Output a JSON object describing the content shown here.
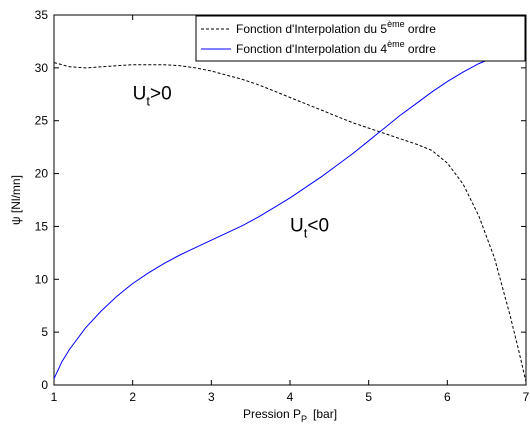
{
  "chart_data": {
    "type": "line",
    "title": "",
    "xlabel": "Pression P",
    "xlabel_sub": "P",
    "xlabel_unit": "[bar]",
    "ylabel": "ψ  [Nl/mn]",
    "xlim": [
      1,
      7
    ],
    "ylim": [
      0,
      35
    ],
    "xticks": [
      "1",
      "2",
      "3",
      "4",
      "5",
      "6",
      "7"
    ],
    "yticks": [
      "0",
      "5",
      "10",
      "15",
      "20",
      "25",
      "30",
      "35"
    ],
    "grid": false,
    "legend_position": "top-right",
    "series": [
      {
        "name_prefix": "Fonction d'Interpolation du 5",
        "name_sup": "ème",
        "name_suffix": " ordre",
        "style": "dashed",
        "color": "#000000",
        "x": [
          1.0,
          1.2,
          1.4,
          1.6,
          1.8,
          2.0,
          2.2,
          2.4,
          2.6,
          2.8,
          3.0,
          3.2,
          3.4,
          3.6,
          3.8,
          4.0,
          4.2,
          4.4,
          4.6,
          4.8,
          5.0,
          5.2,
          5.4,
          5.6,
          5.8,
          6.0,
          6.2,
          6.4,
          6.6,
          6.8,
          6.9,
          7.0
        ],
        "y": [
          30.5,
          30.1,
          30.0,
          30.1,
          30.2,
          30.3,
          30.3,
          30.3,
          30.2,
          30.0,
          29.7,
          29.3,
          28.9,
          28.4,
          27.8,
          27.2,
          26.6,
          26.0,
          25.4,
          24.8,
          24.3,
          23.8,
          23.3,
          22.8,
          22.2,
          21.0,
          19.0,
          16.0,
          12.0,
          6.5,
          3.5,
          0.3
        ]
      },
      {
        "name_prefix": "Fonction d'Interpolation du 4",
        "name_sup": "ème",
        "name_suffix": " ordre",
        "style": "solid",
        "color": "#0000ff",
        "x": [
          1.0,
          1.1,
          1.2,
          1.4,
          1.6,
          1.8,
          2.0,
          2.2,
          2.4,
          2.6,
          2.8,
          3.0,
          3.2,
          3.4,
          3.6,
          3.8,
          4.0,
          4.2,
          4.4,
          4.6,
          4.8,
          5.0,
          5.2,
          5.4,
          5.6,
          5.8,
          6.0,
          6.2,
          6.4,
          6.6,
          6.8,
          7.0
        ],
        "y": [
          0.6,
          2.2,
          3.4,
          5.4,
          7.0,
          8.4,
          9.6,
          10.6,
          11.5,
          12.3,
          13.0,
          13.7,
          14.4,
          15.1,
          15.9,
          16.8,
          17.7,
          18.7,
          19.7,
          20.8,
          21.9,
          23.1,
          24.3,
          25.5,
          26.6,
          27.7,
          28.7,
          29.6,
          30.4,
          31.0,
          31.5,
          31.8
        ]
      }
    ],
    "annotations": [
      {
        "base": "U",
        "sub": "t",
        "rest": ">0",
        "x": 2.0,
        "y": 27.0
      },
      {
        "base": "U",
        "sub": "t",
        "rest": "<0",
        "x": 4.0,
        "y": 14.5
      }
    ]
  }
}
